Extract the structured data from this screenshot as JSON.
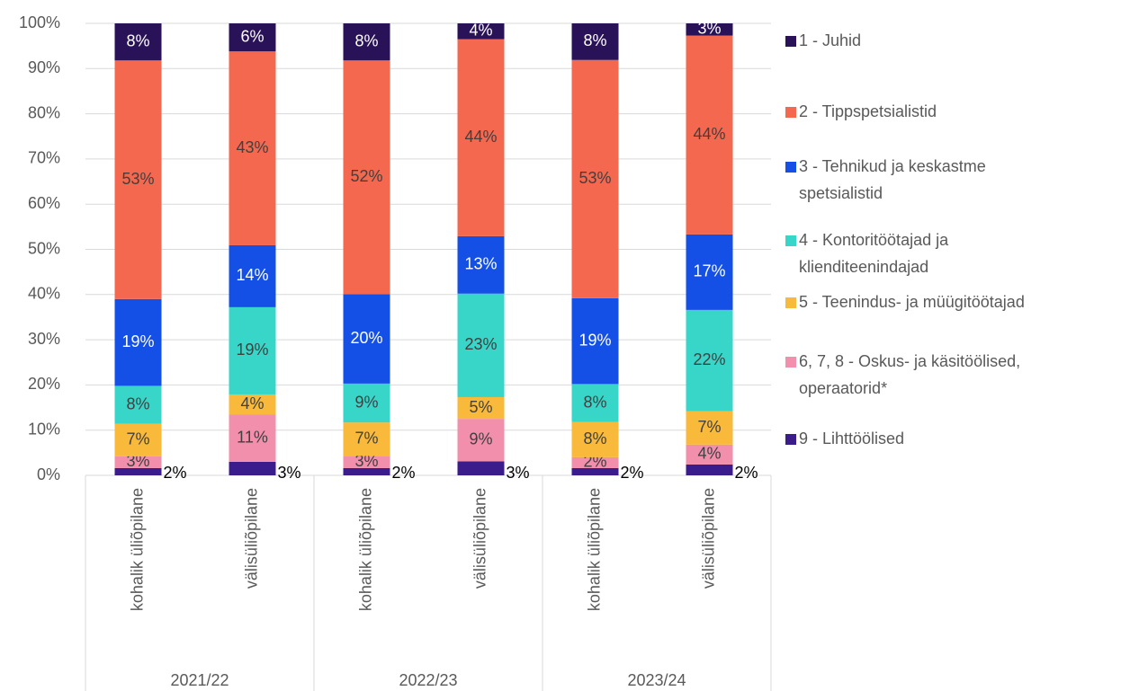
{
  "chart_data": {
    "type": "stacked_bar",
    "categories": [
      "kohalik üliõpilane",
      "välisüliõpilane",
      "kohalik üliõpilane",
      "välisüliõpilane",
      "kohalik üliõpilane",
      "välisüliõpilane"
    ],
    "groups": [
      "2021/22",
      "2022/23",
      "2023/24"
    ],
    "ylim": [
      0,
      100
    ],
    "yticks": [
      {
        "value": 0,
        "label": "0%"
      },
      {
        "value": 10,
        "label": "10%"
      },
      {
        "value": 20,
        "label": "20%"
      },
      {
        "value": 30,
        "label": "30%"
      },
      {
        "value": 40,
        "label": "40%"
      },
      {
        "value": 50,
        "label": "50%"
      },
      {
        "value": 60,
        "label": "60%"
      },
      {
        "value": 70,
        "label": "70%"
      },
      {
        "value": 80,
        "label": "80%"
      },
      {
        "value": 90,
        "label": "90%"
      },
      {
        "value": 100,
        "label": "100%"
      }
    ],
    "grid": true,
    "legend": "right",
    "series": [
      {
        "name": "9 - Lihttöölised",
        "color": "#3b1c8c",
        "values": [
          1.6,
          3.0,
          1.6,
          3.1,
          1.6,
          2.4
        ],
        "value_labels": [
          "2%",
          "3%",
          "2%",
          "3%",
          "2%",
          "2%"
        ]
      },
      {
        "name": "6, 7, 8 - Oskus- ja käsitöölised, operaatorid*",
        "color": "#f28fac",
        "values": [
          2.6,
          10.5,
          2.7,
          9.4,
          2.4,
          4.4
        ],
        "value_labels": [
          "3%",
          "11%",
          "3%",
          "9%",
          "2%",
          "4%"
        ]
      },
      {
        "name": "5 - Teenindus- ja müügitöötajad",
        "color": "#f9b93a",
        "values": [
          7.2,
          4.4,
          7.4,
          4.8,
          7.8,
          7.4
        ],
        "value_labels": [
          "7%",
          "4%",
          "7%",
          "5%",
          "8%",
          "7%"
        ]
      },
      {
        "name": "4 - Kontoritöötajad ja klienditeenindajad",
        "color": "#38d6c9",
        "values": [
          8.4,
          19.3,
          8.6,
          22.9,
          8.4,
          22.4
        ],
        "value_labels": [
          "8%",
          "19%",
          "9%",
          "23%",
          "8%",
          "22%"
        ]
      },
      {
        "name": "3 - Tehnikud ja keskastme spetsialistid",
        "color": "#1450e6",
        "values": [
          19.2,
          13.7,
          19.8,
          12.7,
          19.0,
          16.7
        ],
        "value_labels": [
          "19%",
          "14%",
          "20%",
          "13%",
          "19%",
          "17%"
        ]
      },
      {
        "name": "2 - Tippspetsialistid",
        "color": "#f4684f",
        "values": [
          52.8,
          42.9,
          51.7,
          43.6,
          52.7,
          44.0
        ],
        "value_labels": [
          "53%",
          "43%",
          "52%",
          "44%",
          "53%",
          "44%"
        ]
      },
      {
        "name": "1 - Juhid",
        "color": "#2a1258",
        "values": [
          8.2,
          6.2,
          8.2,
          3.5,
          8.1,
          2.7
        ],
        "value_labels": [
          "8%",
          "6%",
          "8%",
          "4%",
          "8%",
          "3%"
        ]
      }
    ]
  }
}
